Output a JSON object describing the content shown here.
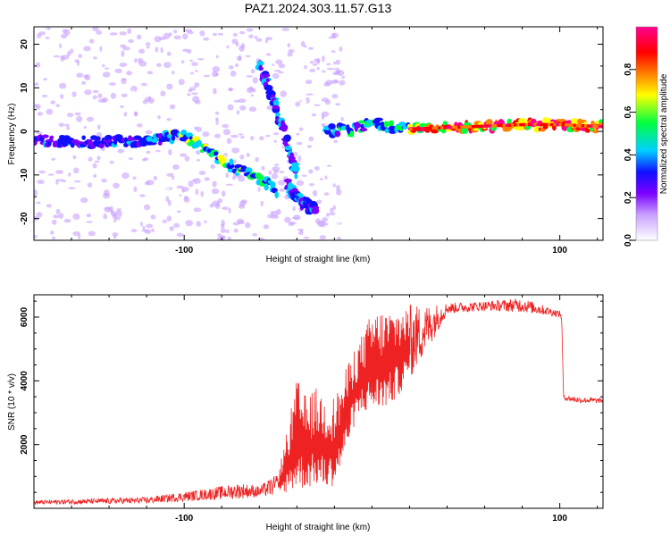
{
  "chart_data": [
    {
      "type": "heatmap",
      "title": "PAZ1.2024.303.11.57.G13",
      "xlabel": "Height of straight line (km)",
      "ylabel": "Frequency (Hz)",
      "xlim": [
        -180,
        123
      ],
      "ylim": [
        -25,
        24
      ],
      "xticks": [
        -100,
        100
      ],
      "yticks": [
        -20,
        -10,
        0,
        10,
        20
      ],
      "colorbar": {
        "label": "Normalized spectral amplitude",
        "range": [
          0,
          1
        ],
        "ticks": [
          "0.0",
          "0.2",
          "0.4",
          "0.6",
          "0.8"
        ],
        "colors": [
          "#ffffff",
          "#c8a0ff",
          "#7b00ff",
          "#1010ff",
          "#00d0ff",
          "#00ff40",
          "#ffff00",
          "#ff7f00",
          "#ff0000",
          "#ff0090"
        ]
      },
      "ridges": [
        {
          "x": [
            -180,
            -150,
            -120,
            -100,
            -85,
            -75,
            -65,
            -55,
            -50
          ],
          "y": [
            -2,
            -2.5,
            -2,
            -1,
            -5,
            -8,
            -10,
            -12,
            -14
          ]
        },
        {
          "x": [
            -60,
            -55,
            -50,
            -45,
            -40
          ],
          "y": [
            15,
            10,
            4,
            -3,
            -10
          ]
        },
        {
          "x": [
            -45,
            -40,
            -35,
            -30
          ],
          "y": [
            -12,
            -15,
            -17,
            -18
          ]
        },
        {
          "x": [
            -25,
            -10,
            0,
            10,
            20,
            50,
            80,
            100,
            123
          ],
          "y": [
            0,
            0.5,
            2,
            1,
            0.5,
            1,
            1.5,
            1.5,
            1
          ]
        }
      ]
    },
    {
      "type": "line",
      "xlabel": "Height of straight line (km)",
      "ylabel": "SNR (10 * v/v)",
      "xlim": [
        -180,
        123
      ],
      "ylim": [
        0,
        6700
      ],
      "xticks": [
        -100,
        100
      ],
      "yticks": [
        2000,
        4000,
        6000
      ],
      "color": "#ee2222",
      "envelope": {
        "x": [
          -180,
          -120,
          -90,
          -70,
          -60,
          -50,
          -45,
          -40,
          -35,
          -30,
          -25,
          -20,
          -15,
          -10,
          -5,
          0,
          10,
          20,
          30,
          40,
          60,
          80,
          100,
          101,
          102,
          110,
          123
        ],
        "lo": [
          120,
          150,
          250,
          300,
          350,
          400,
          500,
          600,
          600,
          700,
          600,
          700,
          1500,
          2500,
          3000,
          3000,
          3200,
          4000,
          5000,
          6100,
          6200,
          6150,
          6000,
          5900,
          3400,
          3300,
          3300
        ],
        "hi": [
          250,
          350,
          600,
          800,
          700,
          1100,
          2500,
          4100,
          3500,
          3800,
          3600,
          3500,
          4200,
          5000,
          5500,
          6200,
          6300,
          6400,
          6400,
          6450,
          6500,
          6600,
          6200,
          6100,
          3550,
          3500,
          3450
        ]
      }
    }
  ]
}
